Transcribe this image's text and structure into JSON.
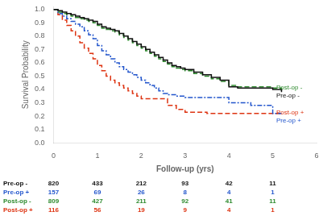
{
  "chart_data": {
    "type": "step",
    "xlabel": "Follow-up (yrs)",
    "ylabel": "Survival Probability",
    "xlim": [
      0,
      6
    ],
    "ylim": [
      0.0,
      1.02
    ],
    "xticks": [
      0,
      1,
      2,
      3,
      4,
      5,
      6
    ],
    "yticks": [
      {
        "value": 0.0,
        "label": "0.0"
      },
      0.1,
      0.2,
      0.3,
      0.4,
      0.5,
      0.6,
      0.7,
      0.8,
      0.9,
      {
        "value": 1.0,
        "label": "1.0"
      }
    ],
    "grid": false,
    "series": [
      {
        "name": "Pre-op -",
        "color": "#111111",
        "line_style": "solid",
        "x": [
          0,
          0.1,
          0.2,
          0.3,
          0.4,
          0.5,
          0.6,
          0.7,
          0.8,
          0.9,
          1.0,
          1.1,
          1.2,
          1.3,
          1.4,
          1.5,
          1.6,
          1.7,
          1.8,
          1.9,
          2.0,
          2.1,
          2.2,
          2.3,
          2.4,
          2.5,
          2.6,
          2.7,
          2.8,
          2.9,
          3.0,
          3.2,
          3.4,
          3.6,
          3.8,
          4.0,
          4.2,
          4.4,
          4.6,
          4.8,
          5.0,
          5.2
        ],
        "values": [
          1.0,
          0.99,
          0.98,
          0.97,
          0.96,
          0.95,
          0.94,
          0.93,
          0.92,
          0.91,
          0.89,
          0.87,
          0.86,
          0.85,
          0.84,
          0.82,
          0.8,
          0.78,
          0.76,
          0.74,
          0.72,
          0.7,
          0.68,
          0.66,
          0.64,
          0.62,
          0.6,
          0.58,
          0.57,
          0.56,
          0.55,
          0.53,
          0.51,
          0.49,
          0.47,
          0.42,
          0.41,
          0.41,
          0.41,
          0.41,
          0.4,
          0.38
        ]
      },
      {
        "name": "Post-op -",
        "color": "#2d8a2d",
        "line_style": "dashed",
        "x": [
          0,
          0.1,
          0.2,
          0.3,
          0.4,
          0.5,
          0.6,
          0.7,
          0.8,
          0.9,
          1.0,
          1.1,
          1.2,
          1.3,
          1.4,
          1.5,
          1.6,
          1.7,
          1.8,
          1.9,
          2.0,
          2.1,
          2.2,
          2.3,
          2.4,
          2.5,
          2.6,
          2.7,
          2.8,
          2.9,
          3.0,
          3.2,
          3.4,
          3.6,
          3.8,
          4.0,
          4.2,
          4.4,
          4.6,
          4.8,
          5.0,
          5.2
        ],
        "values": [
          1.0,
          0.98,
          0.97,
          0.96,
          0.95,
          0.94,
          0.93,
          0.92,
          0.91,
          0.9,
          0.88,
          0.86,
          0.85,
          0.84,
          0.83,
          0.81,
          0.79,
          0.77,
          0.75,
          0.73,
          0.71,
          0.69,
          0.67,
          0.65,
          0.63,
          0.61,
          0.59,
          0.57,
          0.56,
          0.55,
          0.54,
          0.52,
          0.5,
          0.48,
          0.46,
          0.43,
          0.42,
          0.42,
          0.42,
          0.42,
          0.41,
          0.39
        ]
      },
      {
        "name": "Pre-op +",
        "color": "#2255cc",
        "line_style": "dashdot",
        "x": [
          0,
          0.1,
          0.2,
          0.3,
          0.4,
          0.5,
          0.6,
          0.7,
          0.8,
          0.9,
          1.0,
          1.1,
          1.2,
          1.3,
          1.4,
          1.5,
          1.6,
          1.7,
          1.8,
          1.9,
          2.0,
          2.1,
          2.2,
          2.3,
          2.4,
          2.5,
          2.6,
          2.8,
          3.0,
          3.2,
          3.5,
          4.0,
          4.5,
          5.0,
          5.2
        ],
        "values": [
          1.0,
          0.97,
          0.95,
          0.93,
          0.91,
          0.89,
          0.87,
          0.84,
          0.81,
          0.78,
          0.73,
          0.69,
          0.66,
          0.63,
          0.6,
          0.57,
          0.55,
          0.53,
          0.51,
          0.49,
          0.47,
          0.45,
          0.43,
          0.41,
          0.39,
          0.37,
          0.36,
          0.35,
          0.34,
          0.34,
          0.34,
          0.3,
          0.28,
          0.22,
          0.22
        ]
      },
      {
        "name": "Post-op +",
        "color": "#dd3311",
        "line_style": "dashed",
        "x": [
          0,
          0.1,
          0.2,
          0.3,
          0.4,
          0.5,
          0.6,
          0.7,
          0.8,
          0.9,
          1.0,
          1.1,
          1.2,
          1.3,
          1.4,
          1.5,
          1.6,
          1.7,
          1.8,
          1.9,
          2.0,
          2.2,
          2.4,
          2.6,
          2.8,
          3.0,
          3.5,
          4.0,
          4.5,
          5.0,
          5.2
        ],
        "values": [
          1.0,
          0.96,
          0.92,
          0.88,
          0.84,
          0.8,
          0.75,
          0.71,
          0.67,
          0.63,
          0.58,
          0.54,
          0.5,
          0.47,
          0.45,
          0.43,
          0.41,
          0.39,
          0.37,
          0.35,
          0.33,
          0.33,
          0.33,
          0.28,
          0.25,
          0.23,
          0.22,
          0.22,
          0.22,
          0.22,
          0.22
        ]
      }
    ],
    "annotations": [
      {
        "text": "Pre-op -",
        "x": 5.08,
        "y": 0.4,
        "color": "#111111"
      },
      {
        "text": "Post-op -",
        "x": 5.08,
        "y": 0.415,
        "color": "#2d8a2d"
      },
      {
        "text": "Post-op +",
        "x": 5.08,
        "y": 0.225,
        "color": "#dd3311"
      },
      {
        "text": "Pre-op +",
        "x": 5.08,
        "y": 0.21,
        "color": "#2255cc"
      }
    ],
    "at_risk_table": {
      "timepoints": [
        0,
        1,
        2,
        3,
        4,
        5
      ],
      "rows": [
        {
          "name": "Pre-op -",
          "color": "#111111",
          "values": [
            820,
            433,
            212,
            93,
            42,
            11
          ]
        },
        {
          "name": "Pre-op +",
          "color": "#2255cc",
          "values": [
            157,
            69,
            26,
            8,
            4,
            1
          ]
        },
        {
          "name": "Post-op -",
          "color": "#2d8a2d",
          "values": [
            809,
            427,
            211,
            92,
            41,
            11
          ]
        },
        {
          "name": "Post-op +",
          "color": "#dd3311",
          "values": [
            116,
            56,
            19,
            9,
            4,
            1
          ]
        }
      ]
    }
  }
}
